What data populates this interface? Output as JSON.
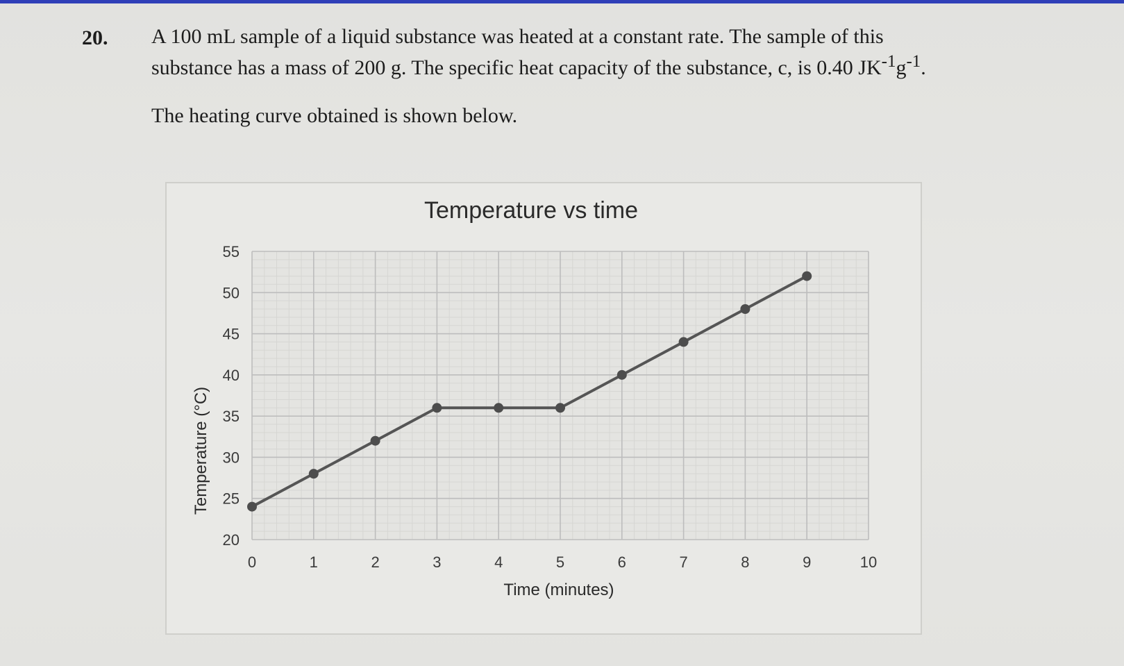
{
  "question": {
    "number": "20.",
    "line1": "A 100 mL sample of a liquid substance was heated at a constant rate. The sample of this",
    "line2_prefix": "substance has a mass of 200 g. The specific heat capacity of the substance, c, is 0.40 JK",
    "line2_sup1": "-1",
    "line2_mid": "g",
    "line2_sup2": "-1",
    "line2_end": ".",
    "line3": "The heating curve obtained is shown below."
  },
  "chart_data": {
    "type": "line",
    "title": "Temperature vs time",
    "xlabel": "Time (minutes)",
    "ylabel": "Temperature (°C)",
    "xlim": [
      0,
      10
    ],
    "ylim": [
      20,
      55
    ],
    "xticks": [
      0,
      1,
      2,
      3,
      4,
      5,
      6,
      7,
      8,
      9,
      10
    ],
    "yticks": [
      20,
      25,
      30,
      35,
      40,
      45,
      50,
      55
    ],
    "grid": "major and minor",
    "series": [
      {
        "x": [
          0,
          1,
          2,
          3,
          4,
          5,
          6,
          7,
          8,
          9
        ],
        "y": [
          24,
          28,
          32,
          36,
          36,
          36,
          40,
          44,
          48,
          52
        ]
      }
    ],
    "colors": {
      "line": "#555555",
      "marker": "#4d4d4d",
      "major_grid": "#bdbdbd",
      "minor_grid": "#d6d6d3",
      "plot_bg": "#e4e4e1"
    }
  }
}
